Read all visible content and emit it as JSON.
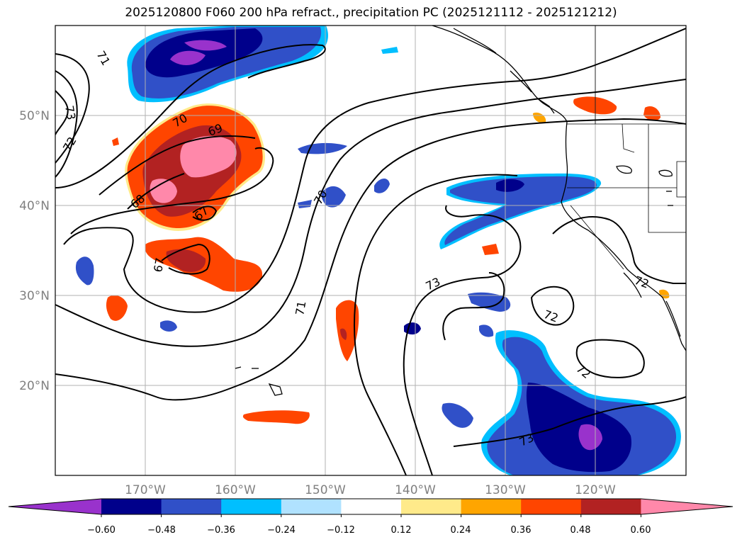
{
  "title": "2025120800 F060 200 hPa refract., precipitation PC (2025121112 - 2025121212)",
  "lat_labels": [
    "50°N",
    "40°N",
    "30°N",
    "20°N"
  ],
  "lon_labels": [
    "170°W",
    "160°W",
    "150°W",
    "140°W",
    "130°W",
    "120°W"
  ],
  "contour_labels": [
    "71",
    "73",
    "72",
    "70",
    "69",
    "68",
    "67",
    "67",
    "70",
    "71",
    "73",
    "72",
    "72",
    "72",
    "73"
  ],
  "colorbar": {
    "ticks": [
      "−0.60",
      "−0.48",
      "−0.36",
      "−0.24",
      "−0.12",
      "0.12",
      "0.24",
      "0.36",
      "0.48",
      "0.60"
    ],
    "colors": [
      "#9932cc",
      "#00008b",
      "#3050c8",
      "#00bfff",
      "#b0e2ff",
      "#ffffff",
      "#ffea8a",
      "#ffa500",
      "#ff4500",
      "#b22222",
      "#ff88aa"
    ]
  },
  "colors": {
    "pink": "#ff88aa",
    "darkred": "#b22222",
    "orangered": "#ff4500",
    "orange": "#ffa500",
    "yellow": "#ffea8a",
    "lightblue": "#b0e2ff",
    "skyblue": "#00bfff",
    "royal": "#3050c8",
    "navy": "#00008b",
    "purple": "#9932cc"
  }
}
